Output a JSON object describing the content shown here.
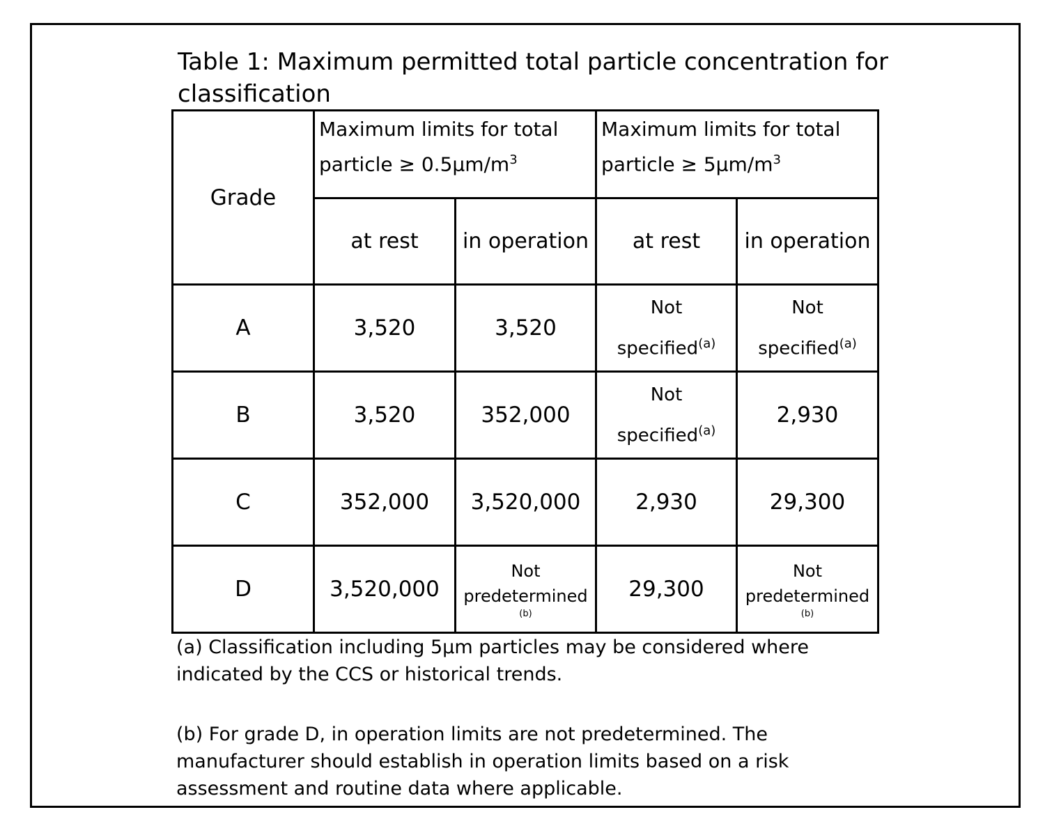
{
  "title": "Table 1: Maximum permitted total particle concentration for classification",
  "table": {
    "grade_header": "Grade",
    "group_headers": [
      {
        "text": "Maximum limits for total particle ≥ 0.5μm/m",
        "sup": "3"
      },
      {
        "text": "Maximum limits for total particle ≥ 5μm/m",
        "sup": "3"
      }
    ],
    "sub_headers": [
      "at rest",
      "in operation",
      "at rest",
      "in operation"
    ],
    "rows": [
      {
        "grade": "A",
        "cells": [
          {
            "v": "3,520"
          },
          {
            "v": "3,520"
          },
          {
            "v": "Not specified",
            "note": "(a)"
          },
          {
            "v": "Not specified",
            "note": "(a)"
          }
        ]
      },
      {
        "grade": "B",
        "cells": [
          {
            "v": "3,520"
          },
          {
            "v": "352,000"
          },
          {
            "v": "Not specified",
            "note": "(a)"
          },
          {
            "v": "2,930"
          }
        ]
      },
      {
        "grade": "C",
        "cells": [
          {
            "v": "352,000"
          },
          {
            "v": "3,520,000"
          },
          {
            "v": "2,930"
          },
          {
            "v": "29,300"
          }
        ]
      },
      {
        "grade": "D",
        "cells": [
          {
            "v": "3,520,000"
          },
          {
            "v": "Not predetermined",
            "note": "(b)"
          },
          {
            "v": "29,300"
          },
          {
            "v": "Not predetermined",
            "note": "(b)"
          }
        ]
      }
    ]
  },
  "footnotes": [
    "(a) Classification including 5μm particles may be considered where indicated by the CCS or historical trends.",
    "(b) For grade D, in operation limits are not predetermined. The manufacturer should establish in operation limits based on a risk assessment and routine data where applicable."
  ]
}
